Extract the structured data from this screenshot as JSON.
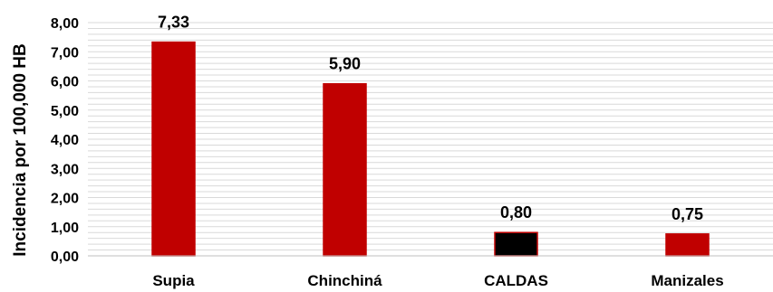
{
  "chart_data": {
    "type": "bar",
    "title": "",
    "xlabel": "",
    "ylabel": "Incidencia por 100,000 HB",
    "categories": [
      "Supia",
      "Chinchiná",
      "CALDAS",
      "Manizales"
    ],
    "values": [
      7.33,
      5.9,
      0.8,
      0.75
    ],
    "value_labels": [
      "7,33",
      "5,90",
      "0,80",
      "0,75"
    ],
    "bar_colors": [
      "#C00000",
      "#C00000",
      "#000000",
      "#C00000"
    ],
    "bar_border_colors": [
      "#C00000",
      "#C00000",
      "#C00000",
      "#C00000"
    ],
    "ylim": [
      0,
      8
    ],
    "y_ticks": [
      0,
      1,
      2,
      3,
      4,
      5,
      6,
      7,
      8
    ],
    "y_tick_labels": [
      "0,00",
      "1,00",
      "2,00",
      "3,00",
      "4,00",
      "5,00",
      "6,00",
      "7,00",
      "8,00"
    ],
    "grid": true,
    "grid_minor_step": 0.2,
    "grid_color": "#D9D9D9",
    "axis_color": "#BFBFBF",
    "legend": "none"
  }
}
